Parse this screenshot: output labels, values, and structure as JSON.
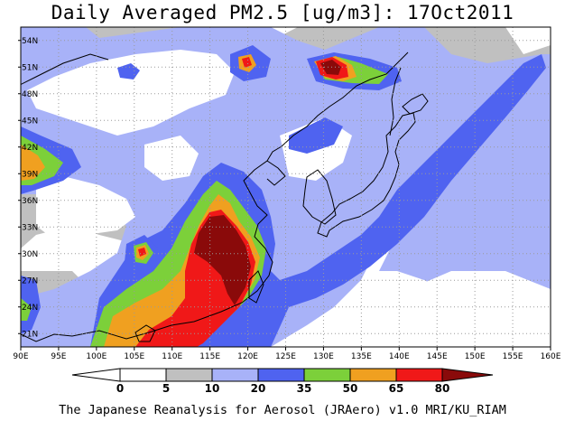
{
  "title": "Daily Averaged PM2.5 [ug/m3]: 17Oct2011",
  "credit": "The Japanese Reanalysis for Aerosol (JRAero) v1.0 MRI/KU_RIAM",
  "map": {
    "lon_range": [
      90,
      160
    ],
    "lat_range": [
      19.5,
      55.5
    ],
    "lon_ticks": [
      {
        "v": 90,
        "t": "90E"
      },
      {
        "v": 95,
        "t": "95E"
      },
      {
        "v": 100,
        "t": "100E"
      },
      {
        "v": 105,
        "t": "105E"
      },
      {
        "v": 110,
        "t": "110E"
      },
      {
        "v": 115,
        "t": "115E"
      },
      {
        "v": 120,
        "t": "120E"
      },
      {
        "v": 125,
        "t": "125E"
      },
      {
        "v": 130,
        "t": "130E"
      },
      {
        "v": 135,
        "t": "135E"
      },
      {
        "v": 140,
        "t": "140E"
      },
      {
        "v": 145,
        "t": "145E"
      },
      {
        "v": 150,
        "t": "150E"
      },
      {
        "v": 155,
        "t": "155E"
      },
      {
        "v": 160,
        "t": "160E"
      }
    ],
    "lat_ticks": [
      {
        "v": 21,
        "t": "21N"
      },
      {
        "v": 24,
        "t": "24N"
      },
      {
        "v": 27,
        "t": "27N"
      },
      {
        "v": 30,
        "t": "30N"
      },
      {
        "v": 33,
        "t": "33N"
      },
      {
        "v": 36,
        "t": "36N"
      },
      {
        "v": 39,
        "t": "39N"
      },
      {
        "v": 42,
        "t": "42N"
      },
      {
        "v": 45,
        "t": "45N"
      },
      {
        "v": 48,
        "t": "48N"
      },
      {
        "v": 51,
        "t": "51N"
      },
      {
        "v": 54,
        "t": "54N"
      }
    ],
    "gridlines": true
  },
  "colorbar": {
    "labels": [
      "0",
      "5",
      "10",
      "20",
      "35",
      "50",
      "65",
      "80"
    ],
    "colors": {
      "below_0": "#ffffff",
      "0_5": "#ffffff",
      "5_10": "#c0c0c0",
      "10_20": "#a8b2f8",
      "20_35": "#4f63f0",
      "35_50": "#7cd03a",
      "50_65": "#f0a020",
      "65_80": "#f01818",
      "above_80": "#8a0a0a"
    }
  }
}
